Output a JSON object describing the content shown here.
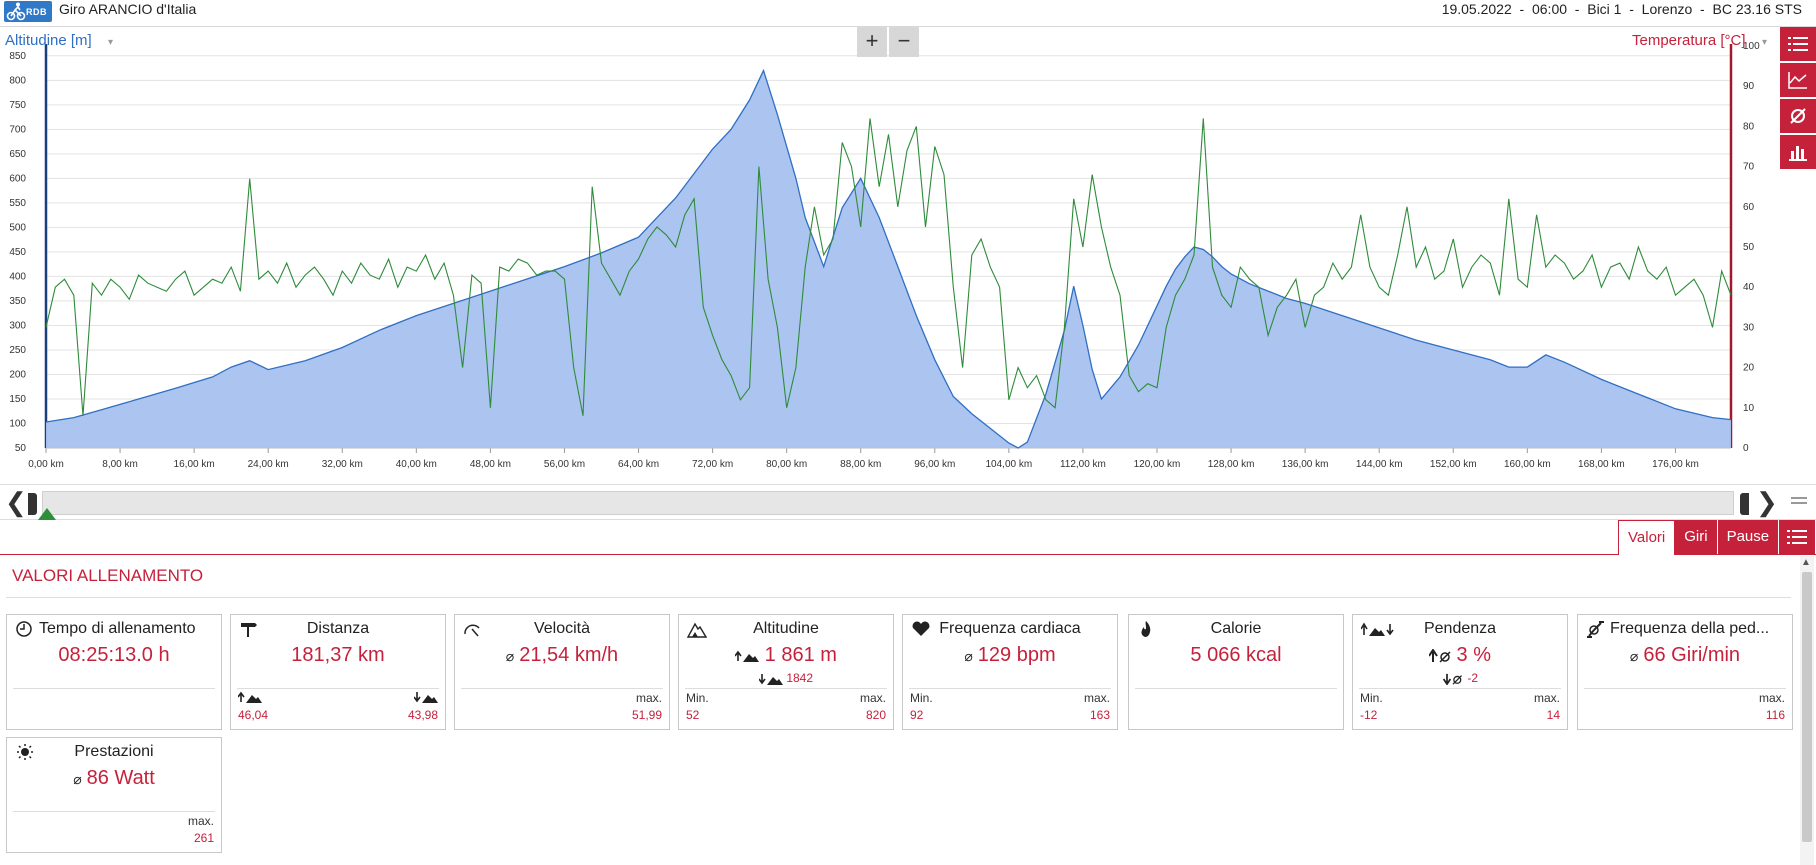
{
  "header": {
    "logo_text": "RDB",
    "title": "Giro ARANCIO d'Italia",
    "session": "19.05.2022  -  06:00  -  Bici 1  -  Lorenzo  -  BC 23.16 STS"
  },
  "chart": {
    "left_axis_label": "Altitudine [m]",
    "right_axis_label": "Temperatura [°C]",
    "zoom_in": "+",
    "zoom_out": "−"
  },
  "chart_data": {
    "type": "line",
    "x_label_unit": "km",
    "x_ticks": [
      "0,00 km",
      "8,00 km",
      "16,00 km",
      "24,00 km",
      "32,00 km",
      "40,00 km",
      "48,00 km",
      "56,00 km",
      "64,00 km",
      "72,00 km",
      "80,00 km",
      "88,00 km",
      "96,00 km",
      "104,00 km",
      "112,00 km",
      "120,00 km",
      "128,00 km",
      "136,00 km",
      "144,00 km",
      "152,00 km",
      "160,00 km",
      "168,00 km",
      "176,00 km"
    ],
    "xlim": [
      0,
      182
    ],
    "left_ylim": [
      50,
      870
    ],
    "left_ticks": [
      50,
      100,
      150,
      200,
      250,
      300,
      350,
      400,
      450,
      500,
      550,
      600,
      650,
      700,
      750,
      800,
      850
    ],
    "right_ylim": [
      0,
      100
    ],
    "right_ticks": [
      0,
      10,
      20,
      30,
      40,
      50,
      60,
      70,
      80,
      90,
      100
    ],
    "grid": true,
    "series": [
      {
        "axis": "left",
        "style": "area",
        "color": "#2f6fc4",
        "fill": "#a8c1ef",
        "x": [
          0,
          3,
          6,
          10,
          14,
          18,
          20,
          22,
          24,
          28,
          32,
          36,
          40,
          44,
          48,
          52,
          56,
          60,
          64,
          66,
          68,
          70,
          72,
          74,
          76,
          77.5,
          79,
          81,
          82,
          84,
          86,
          88,
          90,
          92,
          94,
          96,
          98,
          100,
          102,
          104,
          105,
          106,
          108,
          110,
          111,
          112,
          113,
          114,
          116,
          118,
          120,
          121,
          122,
          123,
          124,
          125,
          126,
          127,
          128,
          130,
          132,
          134,
          136,
          140,
          144,
          148,
          152,
          156,
          158,
          160,
          162,
          164,
          168,
          172,
          176,
          180,
          182
        ],
        "y": [
          103,
          112,
          128,
          150,
          172,
          195,
          215,
          228,
          210,
          228,
          255,
          290,
          320,
          345,
          370,
          395,
          420,
          448,
          480,
          520,
          560,
          610,
          660,
          700,
          760,
          820,
          730,
          600,
          520,
          420,
          540,
          600,
          520,
          420,
          320,
          230,
          155,
          120,
          90,
          60,
          50,
          62,
          160,
          290,
          380,
          300,
          210,
          150,
          195,
          260,
          340,
          380,
          415,
          440,
          460,
          455,
          440,
          420,
          405,
          385,
          370,
          355,
          345,
          320,
          295,
          270,
          250,
          230,
          215,
          215,
          240,
          225,
          190,
          160,
          130,
          112,
          108
        ]
      },
      {
        "axis": "right",
        "style": "line",
        "color": "#2e8b3a",
        "x": [
          0,
          1,
          2,
          3,
          4,
          5,
          6,
          7,
          8,
          9,
          10,
          11,
          12,
          13,
          14,
          15,
          16,
          17,
          18,
          19,
          20,
          21,
          22,
          23,
          24,
          25,
          26,
          27,
          28,
          29,
          30,
          31,
          32,
          33,
          34,
          35,
          36,
          37,
          38,
          39,
          40,
          41,
          42,
          43,
          44,
          45,
          46,
          47,
          48,
          49,
          50,
          51,
          52,
          53,
          54,
          55,
          56,
          57,
          58,
          59,
          60,
          61,
          62,
          63,
          64,
          65,
          66,
          67,
          68,
          69,
          70,
          71,
          72,
          73,
          74,
          75,
          76,
          77,
          78,
          79,
          80,
          81,
          82,
          83,
          84,
          85,
          86,
          87,
          88,
          89,
          90,
          91,
          92,
          93,
          94,
          95,
          96,
          97,
          98,
          99,
          100,
          101,
          102,
          103,
          104,
          105,
          106,
          107,
          108,
          109,
          110,
          111,
          112,
          113,
          114,
          115,
          116,
          117,
          118,
          119,
          120,
          121,
          122,
          123,
          124,
          125,
          126,
          127,
          128,
          129,
          130,
          131,
          132,
          133,
          134,
          135,
          136,
          137,
          138,
          139,
          140,
          141,
          142,
          143,
          144,
          145,
          146,
          147,
          148,
          149,
          150,
          151,
          152,
          153,
          154,
          155,
          156,
          157,
          158,
          159,
          160,
          161,
          162,
          163,
          164,
          165,
          166,
          167,
          168,
          169,
          170,
          171,
          172,
          173,
          174,
          175,
          176,
          177,
          178,
          179,
          180,
          181,
          182
        ],
        "y": [
          30,
          40,
          42,
          38,
          8,
          41,
          38,
          42,
          40,
          37,
          43,
          41,
          40,
          39,
          42,
          44,
          38,
          40,
          42,
          41,
          45,
          39,
          67,
          42,
          44,
          41,
          46,
          40,
          43,
          45,
          42,
          38,
          44,
          41,
          46,
          43,
          42,
          47,
          40,
          45,
          44,
          48,
          42,
          46,
          38,
          20,
          43,
          41,
          10,
          45,
          44,
          47,
          46,
          43,
          44,
          44,
          42,
          20,
          8,
          65,
          46,
          42,
          38,
          44,
          47,
          52,
          55,
          53,
          50,
          58,
          62,
          35,
          28,
          22,
          18,
          12,
          15,
          70,
          42,
          30,
          10,
          20,
          45,
          60,
          48,
          52,
          76,
          70,
          55,
          82,
          65,
          78,
          60,
          74,
          80,
          55,
          75,
          68,
          40,
          20,
          48,
          52,
          45,
          40,
          12,
          20,
          15,
          18,
          12,
          10,
          30,
          62,
          50,
          68,
          55,
          45,
          38,
          18,
          14,
          16,
          15,
          30,
          38,
          42,
          48,
          82,
          45,
          38,
          35,
          45,
          42,
          40,
          28,
          35,
          38,
          42,
          30,
          38,
          40,
          46,
          42,
          45,
          58,
          45,
          40,
          38,
          48,
          60,
          45,
          50,
          42,
          44,
          52,
          40,
          45,
          48,
          46,
          38,
          62,
          42,
          40,
          58,
          45,
          48,
          46,
          42,
          44,
          48,
          40,
          45,
          46,
          42,
          50,
          44,
          42,
          45,
          38,
          40,
          42,
          38,
          30,
          44,
          38
        ]
      }
    ]
  },
  "range": {
    "left_arrow": "❮",
    "right_arrow": "❯"
  },
  "tabs": [
    {
      "label": "Valori",
      "active": true
    },
    {
      "label": "Giri",
      "active": false
    },
    {
      "label": "Pause",
      "active": false
    }
  ],
  "section_title": "VALORI ALLENAMENTO",
  "cards": {
    "tempo": {
      "title": "Tempo di allenamento",
      "main": "08:25:13.0 h"
    },
    "distanza": {
      "title": "Distanza",
      "main": "181,37 km",
      "bl_value": "46,04",
      "br_value": "43,98"
    },
    "velocita": {
      "title": "Velocità",
      "avg_symbol": "⌀",
      "main": "21,54 km/h",
      "br_label": "max.",
      "br_value": "51,99"
    },
    "altitudine": {
      "title": "Altitudine",
      "main": "1 861 m",
      "sub": "1842",
      "bl_label": "Min.",
      "bl_value": "52",
      "br_label": "max.",
      "br_value": "820"
    },
    "frequenza_cardiaca": {
      "title": "Frequenza cardiaca",
      "avg_symbol": "⌀",
      "main": "129 bpm",
      "bl_label": "Min.",
      "bl_value": "92",
      "br_label": "max.",
      "br_value": "163"
    },
    "calorie": {
      "title": "Calorie",
      "main": "5 066 kcal"
    },
    "pendenza": {
      "title": "Pendenza",
      "main": "3 %",
      "sub": "-2",
      "bl_label": "Min.",
      "bl_value": "-12",
      "br_label": "max.",
      "br_value": "14"
    },
    "cadenza": {
      "title": "Frequenza della ped...",
      "avg_symbol": "⌀",
      "main": "66 Giri/min",
      "br_label": "max.",
      "br_value": "116"
    },
    "prestazioni": {
      "title": "Prestazioni",
      "avg_symbol": "⌀",
      "main": "86 Watt",
      "br_label": "max.",
      "br_value": "261"
    }
  }
}
